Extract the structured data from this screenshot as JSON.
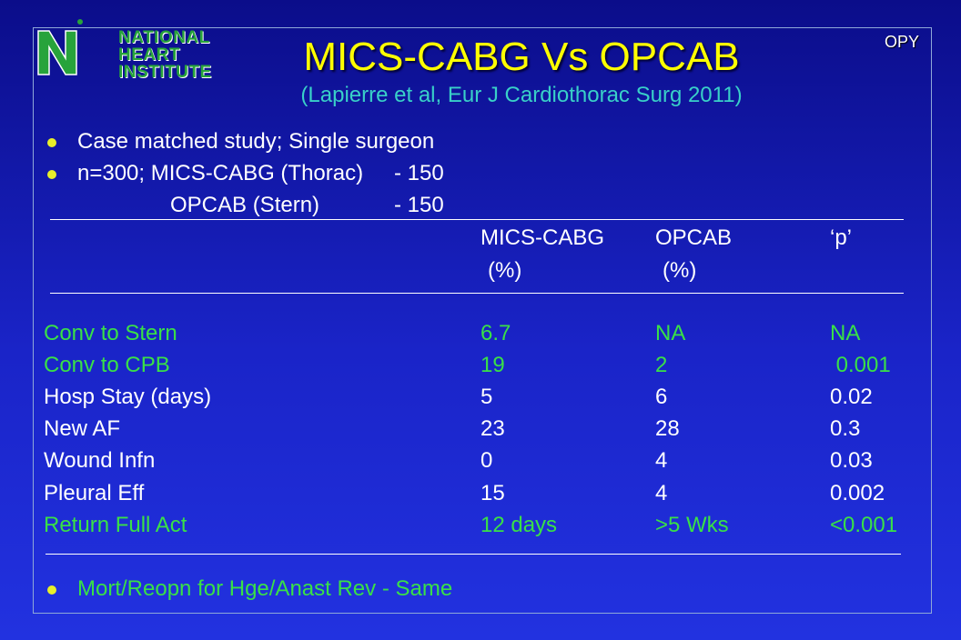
{
  "logo": {
    "line1": "NATIONAL",
    "line2": "HEART",
    "line3": "INSTITUTE"
  },
  "corner_label": "OPY",
  "title": "MICS-CABG Vs OPCAB",
  "subtitle": "(Lapierre et al, Eur J Cardiothorac Surg 2011)",
  "bullets": {
    "b1": "Case matched study; Single surgeon",
    "b2_left": "n=300; MICS-CABG (Thorac)",
    "b2_right": "- 150",
    "b3_left": "OPCAB (Stern)",
    "b3_right": "- 150",
    "bottom": "Mort/Reopn for Hge/Anast Rev - Same"
  },
  "table": {
    "header": {
      "col1": "MICS-CABG",
      "col1_unit": "(%)",
      "col2": "OPCAB",
      "col2_unit": "(%)",
      "col3": "‘p’"
    },
    "rows": [
      {
        "label": "Conv to Stern",
        "mics": "6.7",
        "opcab": "NA",
        "p": "NA",
        "highlight": true
      },
      {
        "label": "Conv to CPB",
        "mics": "19",
        "opcab": "2",
        "p": " 0.001",
        "highlight": true
      },
      {
        "label": "Hosp Stay (days)",
        "mics": "5",
        "opcab": "6",
        "p": "0.02",
        "highlight": false
      },
      {
        "label": "New AF",
        "mics": "23",
        "opcab": "28",
        "p": "0.3",
        "highlight": false
      },
      {
        "label": "Wound Infn",
        "mics": "0",
        "opcab": "4",
        "p": "0.03",
        "highlight": false
      },
      {
        "label": "Pleural Eff",
        "mics": "15",
        "opcab": "4",
        "p": "0.002",
        "highlight": false
      },
      {
        "label": "Return Full Act",
        "mics": "12 days",
        "opcab": ">5 Wks",
        "p": "<0.001",
        "highlight": true
      }
    ]
  },
  "colors": {
    "title": "#ffff00",
    "subtitle": "#39d0c8",
    "highlight": "#39e047",
    "bullet": "#e8ef2a",
    "logo": "#27a33b"
  }
}
